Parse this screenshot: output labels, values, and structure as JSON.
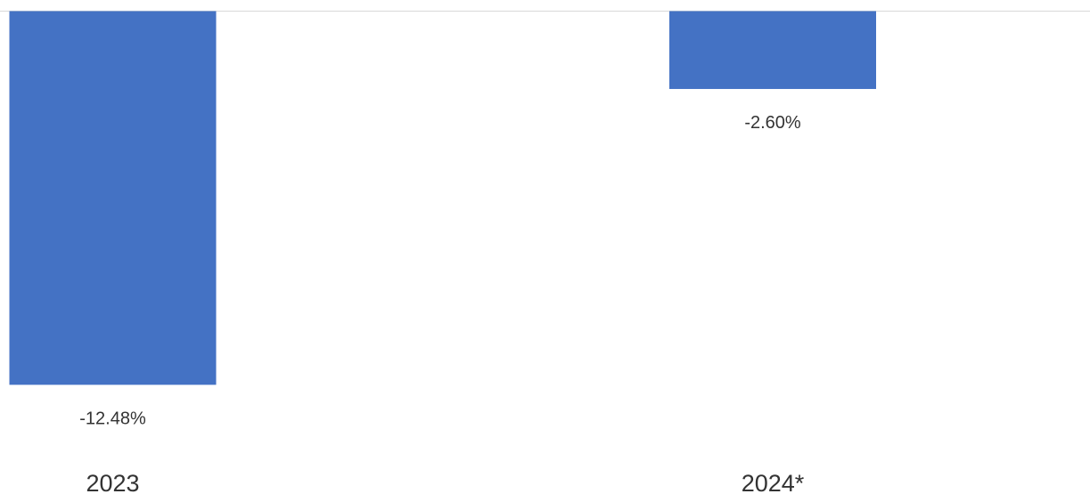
{
  "chart_data": {
    "type": "bar",
    "categories": [
      "2023",
      "2024*"
    ],
    "values": [
      -12.48,
      -2.6
    ],
    "value_labels": [
      "-12.48%",
      "-2.60%"
    ],
    "ylim": [
      -12.5,
      0
    ],
    "grid": false,
    "legend": "none",
    "colors": {
      "bar": "#4472c4",
      "axis": "#d9d9d9",
      "text": "#333333"
    }
  }
}
